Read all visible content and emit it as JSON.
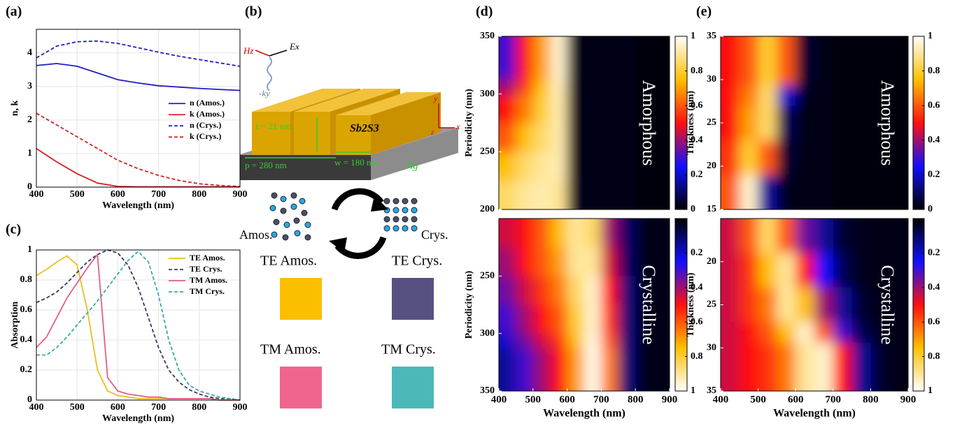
{
  "chart_data": [
    {
      "type": "line",
      "label": "(a)",
      "xlabel": "Wavelength (nm)",
      "ylabel": "n, k",
      "x": [
        400,
        450,
        500,
        550,
        600,
        650,
        700,
        750,
        800,
        850,
        900
      ],
      "xlim": [
        400,
        900
      ],
      "xticks": [
        400,
        500,
        600,
        700,
        800,
        900
      ],
      "ylim": [
        0,
        4.7
      ],
      "yticks": [
        0,
        1,
        2,
        3,
        4
      ],
      "grid": true,
      "legend": "right",
      "series": [
        {
          "name": "n (Amos.)",
          "color": "#1f1fbf",
          "dash": false,
          "values": [
            3.62,
            3.68,
            3.6,
            3.4,
            3.2,
            3.1,
            3.02,
            2.98,
            2.94,
            2.91,
            2.88
          ]
        },
        {
          "name": "k (Amos.)",
          "color": "#d42020",
          "dash": false,
          "values": [
            1.15,
            0.75,
            0.4,
            0.12,
            0.02,
            0.01,
            0.01,
            0.01,
            0.01,
            0.01,
            0.01
          ]
        },
        {
          "name": "n (Crys.)",
          "color": "#1f1fbf",
          "dash": true,
          "values": [
            3.85,
            4.2,
            4.33,
            4.35,
            4.28,
            4.15,
            4.02,
            3.9,
            3.8,
            3.7,
            3.6
          ]
        },
        {
          "name": "k (Crys.)",
          "color": "#d42020",
          "dash": true,
          "values": [
            2.2,
            1.85,
            1.5,
            1.15,
            0.8,
            0.55,
            0.35,
            0.2,
            0.1,
            0.05,
            0.02
          ]
        }
      ]
    },
    {
      "type": "line",
      "label": "(c)",
      "xlabel": "Wavelength (nm)",
      "ylabel": "Absorption",
      "x": [
        400,
        425,
        450,
        475,
        500,
        525,
        550,
        575,
        600,
        625,
        650,
        675,
        700,
        725,
        750,
        775,
        800,
        825,
        850,
        875,
        900
      ],
      "xlim": [
        400,
        900
      ],
      "xticks": [
        400,
        500,
        600,
        700,
        800,
        900
      ],
      "ylim": [
        0,
        1
      ],
      "yticks": [
        0,
        0.2,
        0.4,
        0.6,
        0.8,
        1
      ],
      "grid": true,
      "legend": "top-right",
      "series": [
        {
          "name": "TE Amos.",
          "color": "#e8c020",
          "dash": false,
          "values": [
            0.83,
            0.87,
            0.92,
            0.96,
            0.9,
            0.6,
            0.2,
            0.06,
            0.03,
            0.02,
            0.01,
            0.01,
            0.01,
            0.01,
            0.01,
            0.01,
            0.01,
            0.01,
            0,
            0,
            0
          ]
        },
        {
          "name": "TE Crys.",
          "color": "#3a3a5a",
          "dash": true,
          "values": [
            0.65,
            0.68,
            0.72,
            0.78,
            0.85,
            0.92,
            0.97,
            1,
            0.98,
            0.9,
            0.75,
            0.55,
            0.35,
            0.2,
            0.12,
            0.07,
            0.04,
            0.02,
            0.01,
            0.01,
            0
          ]
        },
        {
          "name": "TM Amos.",
          "color": "#e0608a",
          "dash": false,
          "values": [
            0.35,
            0.42,
            0.55,
            0.68,
            0.78,
            0.88,
            0.97,
            0.15,
            0.06,
            0.04,
            0.03,
            0.02,
            0.02,
            0.01,
            0.01,
            0.01,
            0.01,
            0.01,
            0,
            0,
            0
          ]
        },
        {
          "name": "TM Crys.",
          "color": "#3aa8a8",
          "dash": true,
          "values": [
            0.3,
            0.3,
            0.35,
            0.42,
            0.5,
            0.58,
            0.66,
            0.75,
            0.84,
            0.93,
            0.99,
            0.92,
            0.7,
            0.4,
            0.2,
            0.1,
            0.06,
            0.04,
            0.02,
            0.01,
            0
          ]
        }
      ]
    },
    {
      "type": "heatmap",
      "label": "(d)",
      "ylabel": "Periodicity (nm)",
      "annotation": "Amorphous",
      "x": [
        425,
        475,
        525,
        575,
        625,
        675,
        725,
        775,
        825,
        875
      ],
      "y": [
        212.5,
        237.5,
        262.5,
        287.5,
        312.5,
        337.5
      ],
      "z": [
        [
          0.85,
          0.9,
          0.92,
          0.9,
          0.03,
          0.02,
          0.02,
          0.02,
          0.01,
          0.01
        ],
        [
          0.75,
          0.85,
          0.9,
          0.92,
          0.03,
          0.02,
          0.02,
          0.02,
          0.01,
          0.01
        ],
        [
          0.6,
          0.75,
          0.85,
          0.92,
          0.03,
          0.02,
          0.02,
          0.02,
          0.01,
          0.01
        ],
        [
          0.5,
          0.65,
          0.8,
          0.92,
          0.03,
          0.02,
          0.02,
          0.02,
          0.01,
          0.01
        ],
        [
          0.4,
          0.55,
          0.75,
          0.93,
          0.03,
          0.02,
          0.02,
          0.02,
          0.01,
          0.01
        ],
        [
          0.3,
          0.5,
          0.7,
          0.95,
          0.03,
          0.02,
          0.02,
          0.02,
          0.01,
          0.01
        ]
      ],
      "xlim": [
        400,
        900
      ],
      "ylim": [
        200,
        350
      ],
      "yticks": [
        200,
        250,
        300,
        350
      ],
      "clim": [
        0,
        1
      ],
      "cticks": [
        0,
        0.2,
        0.4,
        0.6,
        0.8,
        1
      ],
      "colormap": [
        "#000000",
        "#1010ff",
        "#ff1010",
        "#ffc000",
        "#ffffff"
      ],
      "reverse": false
    },
    {
      "type": "heatmap",
      "ylabel": "Periodicity (nm)",
      "xlabel": "Wavelength (nm)",
      "annotation": "Crystalline",
      "x": [
        425,
        475,
        525,
        575,
        625,
        675,
        725,
        775,
        825,
        875
      ],
      "y": [
        212.5,
        237.5,
        262.5,
        287.5,
        312.5,
        337.5
      ],
      "z": [
        [
          0.45,
          0.5,
          0.6,
          0.75,
          0.9,
          0.85,
          0.4,
          0.1,
          0.03,
          0.02
        ],
        [
          0.4,
          0.5,
          0.6,
          0.7,
          0.9,
          0.9,
          0.45,
          0.1,
          0.03,
          0.02
        ],
        [
          0.35,
          0.45,
          0.55,
          0.65,
          0.85,
          0.95,
          0.5,
          0.12,
          0.03,
          0.02
        ],
        [
          0.3,
          0.4,
          0.5,
          0.6,
          0.8,
          0.95,
          0.55,
          0.12,
          0.03,
          0.02
        ],
        [
          0.2,
          0.35,
          0.45,
          0.55,
          0.75,
          0.97,
          0.6,
          0.12,
          0.03,
          0.02
        ],
        [
          0.15,
          0.3,
          0.4,
          0.5,
          0.7,
          0.98,
          0.65,
          0.12,
          0.03,
          0.02
        ]
      ],
      "xlim": [
        400,
        900
      ],
      "xticks": [
        400,
        500,
        600,
        700,
        800,
        900
      ],
      "ylim": [
        200,
        350
      ],
      "yticks": [
        250,
        300,
        350
      ],
      "clim": [
        0,
        1
      ],
      "cticks": [
        0.2,
        0.4,
        0.6,
        0.8,
        1
      ],
      "colormap": [
        "#000000",
        "#1010ff",
        "#ff1010",
        "#ffc000",
        "#ffffff"
      ],
      "reverse": true
    },
    {
      "type": "heatmap",
      "label": "(e)",
      "ylabel": "Thickness (nm)",
      "annotation": "Amorphous",
      "x": [
        425,
        475,
        525,
        575,
        625,
        675,
        725,
        775,
        825,
        875
      ],
      "y": [
        17,
        21,
        25,
        29,
        33
      ],
      "z": [
        [
          0.6,
          0.95,
          0.15,
          0.03,
          0.02,
          0.02,
          0.01,
          0.01,
          0.01,
          0.01
        ],
        [
          0.55,
          0.8,
          0.6,
          0.05,
          0.02,
          0.02,
          0.01,
          0.01,
          0.01,
          0.01
        ],
        [
          0.5,
          0.7,
          0.85,
          0.08,
          0.02,
          0.02,
          0.01,
          0.01,
          0.01,
          0.01
        ],
        [
          0.5,
          0.65,
          0.85,
          0.2,
          0.03,
          0.02,
          0.01,
          0.01,
          0.01,
          0.01
        ],
        [
          0.5,
          0.6,
          0.8,
          0.6,
          0.05,
          0.02,
          0.01,
          0.01,
          0.01,
          0.01
        ]
      ],
      "xlim": [
        400,
        900
      ],
      "ylim": [
        15,
        35
      ],
      "yticks": [
        15,
        20,
        25,
        30,
        35
      ],
      "clim": [
        0,
        1
      ],
      "cticks": [
        0,
        0.2,
        0.4,
        0.6,
        0.8,
        1
      ],
      "colormap": [
        "#000000",
        "#1010ff",
        "#ff1010",
        "#ffc000",
        "#ffffff"
      ],
      "reverse": false
    },
    {
      "type": "heatmap",
      "ylabel": "Thickness (nm)",
      "xlabel": "Wavelength (nm)",
      "annotation": "Crystalline",
      "x": [
        425,
        475,
        525,
        575,
        625,
        675,
        725,
        775,
        825,
        875
      ],
      "y": [
        17,
        21,
        25,
        29,
        33
      ],
      "z": [
        [
          0.45,
          0.6,
          0.85,
          0.6,
          0.35,
          0.15,
          0.05,
          0.03,
          0.02,
          0.02
        ],
        [
          0.45,
          0.55,
          0.75,
          0.9,
          0.5,
          0.25,
          0.08,
          0.03,
          0.02,
          0.02
        ],
        [
          0.45,
          0.55,
          0.65,
          0.9,
          0.75,
          0.4,
          0.15,
          0.05,
          0.02,
          0.02
        ],
        [
          0.45,
          0.5,
          0.6,
          0.75,
          0.95,
          0.6,
          0.3,
          0.08,
          0.03,
          0.02
        ],
        [
          0.45,
          0.5,
          0.55,
          0.65,
          0.9,
          0.95,
          0.5,
          0.15,
          0.04,
          0.02
        ]
      ],
      "xlim": [
        400,
        900
      ],
      "xticks": [
        400,
        500,
        600,
        700,
        800,
        900
      ],
      "ylim": [
        15,
        35
      ],
      "yticks": [
        20,
        25,
        30,
        35
      ],
      "clim": [
        0,
        1
      ],
      "cticks": [
        0.2,
        0.4,
        0.6,
        0.8,
        1
      ],
      "colormap": [
        "#000000",
        "#1010ff",
        "#ff1010",
        "#ffc000",
        "#ffffff"
      ],
      "reverse": true
    }
  ],
  "diagram": {
    "label": "(b)",
    "fields": [
      "Hz",
      "Ex",
      "-ky"
    ],
    "dims": [
      "t = 21 nm",
      "p = 280 nm",
      "w = 180 nm"
    ],
    "materials": [
      "Sb2S3",
      "Ag"
    ],
    "coords": [
      "y",
      "x",
      "z"
    ],
    "phases": [
      "Amos.",
      "Crys."
    ],
    "swatches": [
      {
        "name": "TE Amos.",
        "color": "#fbbf00"
      },
      {
        "name": "TE Crys.",
        "color": "#575183"
      },
      {
        "name": "TM Amos.",
        "color": "#f0658e"
      },
      {
        "name": "TM Crys.",
        "color": "#4cb8b8"
      }
    ]
  }
}
